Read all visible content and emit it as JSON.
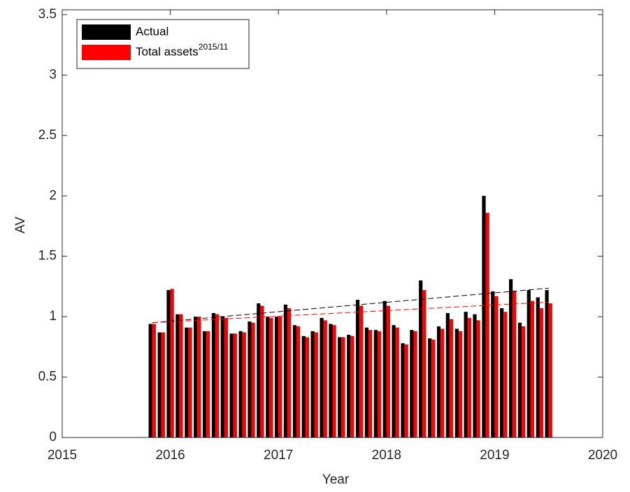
{
  "chart_data": {
    "type": "bar",
    "x_label": "Year",
    "y_label": "AV",
    "xlim": [
      2015,
      2020
    ],
    "xticks": [
      2015,
      2016,
      2017,
      2018,
      2019,
      2020
    ],
    "ylim": [
      0,
      3.54
    ],
    "yticks": [
      0,
      0.5,
      1,
      1.5,
      2,
      2.5,
      3,
      3.5
    ],
    "grid": false,
    "legend": "top-left",
    "x": [
      2015.833,
      2015.917,
      2016.0,
      2016.083,
      2016.167,
      2016.25,
      2016.333,
      2016.417,
      2016.5,
      2016.583,
      2016.667,
      2016.75,
      2016.833,
      2016.917,
      2017.0,
      2017.083,
      2017.167,
      2017.25,
      2017.333,
      2017.417,
      2017.5,
      2017.583,
      2017.667,
      2017.75,
      2017.833,
      2017.917,
      2018.0,
      2018.083,
      2018.167,
      2018.25,
      2018.333,
      2018.417,
      2018.5,
      2018.583,
      2018.667,
      2018.75,
      2018.833,
      2018.917,
      2019.0,
      2019.083,
      2019.167,
      2019.25,
      2019.333,
      2019.417,
      2019.5
    ],
    "series": [
      {
        "name": "Actual",
        "color": "#000000",
        "values": [
          0.94,
          0.87,
          1.22,
          1.02,
          0.91,
          1.0,
          0.88,
          1.03,
          1.0,
          0.86,
          0.88,
          0.96,
          1.11,
          1.0,
          1.0,
          1.1,
          0.93,
          0.84,
          0.88,
          0.99,
          0.94,
          0.83,
          0.85,
          1.14,
          0.91,
          0.89,
          1.13,
          0.93,
          0.78,
          0.89,
          1.3,
          0.82,
          0.92,
          1.03,
          0.9,
          1.04,
          1.02,
          2.0,
          1.21,
          1.07,
          1.31,
          0.95,
          1.22,
          1.16,
          1.22
        ]
      },
      {
        "name": "Total assets",
        "name_superscript": "2015/11",
        "color": "#ff0000",
        "values": [
          0.94,
          0.87,
          1.23,
          1.02,
          0.91,
          1.0,
          0.88,
          1.02,
          0.99,
          0.86,
          0.87,
          0.95,
          1.09,
          0.99,
          1.0,
          1.07,
          0.92,
          0.83,
          0.87,
          0.97,
          0.93,
          0.83,
          0.84,
          1.09,
          0.89,
          0.88,
          1.09,
          0.91,
          0.77,
          0.88,
          1.22,
          0.81,
          0.9,
          0.98,
          0.88,
          0.99,
          0.97,
          1.86,
          1.17,
          1.04,
          1.21,
          0.92,
          1.13,
          1.07,
          1.11
        ]
      }
    ],
    "trendlines": [
      {
        "color": "#000000",
        "x": [
          2015.833,
          2019.5
        ],
        "values": [
          0.95,
          1.236
        ]
      },
      {
        "color": "#ff0000",
        "x": [
          2015.833,
          2019.5
        ],
        "values": [
          0.95,
          1.12
        ]
      }
    ]
  }
}
